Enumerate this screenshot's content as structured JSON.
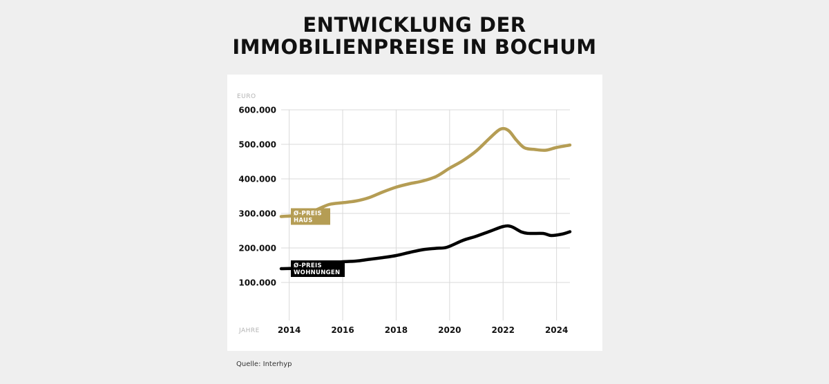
{
  "header": {
    "title_line1": "ENTWICKLUNG DER",
    "title_line2": "IMMOBILIENPREISE IN BOCHUM"
  },
  "source": "Quelle: Interhyp",
  "colors": {
    "haus": "#b59d54",
    "wohnungen": "#000000",
    "grid": "#d9d9d9",
    "axis_title": "#b3b3b3"
  },
  "chart_data": {
    "type": "line",
    "title": "ENTWICKLUNG DER IMMOBILIENPREISE IN BOCHUM",
    "ylabel": "EURO",
    "xlabel": "JAHRE",
    "ylim": [
      100000,
      600000
    ],
    "xlim": [
      2013.7,
      2024.5
    ],
    "grid": true,
    "y_ticks": [
      {
        "value": 100000,
        "label": "100.000"
      },
      {
        "value": 200000,
        "label": "200.000"
      },
      {
        "value": 300000,
        "label": "300.000"
      },
      {
        "value": 400000,
        "label": "400.000"
      },
      {
        "value": 500000,
        "label": "500.000"
      },
      {
        "value": 600000,
        "label": "600.000"
      }
    ],
    "x_ticks": [
      {
        "value": 2014,
        "label": "2014"
      },
      {
        "value": 2016,
        "label": "2016"
      },
      {
        "value": 2018,
        "label": "2018"
      },
      {
        "value": 2020,
        "label": "2020"
      },
      {
        "value": 2022,
        "label": "2022"
      },
      {
        "value": 2024,
        "label": "2024"
      }
    ],
    "series": [
      {
        "name_lines": [
          "Ø-PREIS",
          "HAUS"
        ],
        "color": "#b59d54",
        "points": [
          [
            2013.7,
            291000
          ],
          [
            2014.5,
            296000
          ],
          [
            2015.0,
            310000
          ],
          [
            2015.5,
            326000
          ],
          [
            2016.0,
            331000
          ],
          [
            2016.5,
            336000
          ],
          [
            2017.0,
            346000
          ],
          [
            2017.5,
            362000
          ],
          [
            2018.0,
            376000
          ],
          [
            2018.5,
            386000
          ],
          [
            2019.0,
            394000
          ],
          [
            2019.5,
            407000
          ],
          [
            2020.0,
            431000
          ],
          [
            2020.5,
            453000
          ],
          [
            2021.0,
            481000
          ],
          [
            2021.5,
            518000
          ],
          [
            2021.9,
            544000
          ],
          [
            2022.2,
            540000
          ],
          [
            2022.5,
            512000
          ],
          [
            2022.8,
            490000
          ],
          [
            2023.2,
            485000
          ],
          [
            2023.6,
            483000
          ],
          [
            2024.0,
            491000
          ],
          [
            2024.5,
            498000
          ]
        ]
      },
      {
        "name_lines": [
          "Ø-PREIS",
          "WOHNUNGEN"
        ],
        "color": "#000000",
        "points": [
          [
            2013.7,
            140000
          ],
          [
            2014.5,
            142000
          ],
          [
            2015.0,
            150000
          ],
          [
            2015.5,
            157000
          ],
          [
            2016.0,
            160000
          ],
          [
            2016.5,
            162000
          ],
          [
            2017.0,
            167000
          ],
          [
            2017.5,
            172000
          ],
          [
            2018.0,
            178000
          ],
          [
            2018.5,
            187000
          ],
          [
            2019.0,
            195000
          ],
          [
            2019.5,
            199000
          ],
          [
            2019.9,
            202000
          ],
          [
            2020.5,
            222000
          ],
          [
            2021.0,
            234000
          ],
          [
            2021.5,
            248000
          ],
          [
            2022.0,
            262000
          ],
          [
            2022.3,
            262000
          ],
          [
            2022.7,
            246000
          ],
          [
            2023.0,
            242000
          ],
          [
            2023.5,
            242000
          ],
          [
            2023.8,
            236000
          ],
          [
            2024.2,
            240000
          ],
          [
            2024.5,
            247000
          ]
        ]
      }
    ]
  }
}
